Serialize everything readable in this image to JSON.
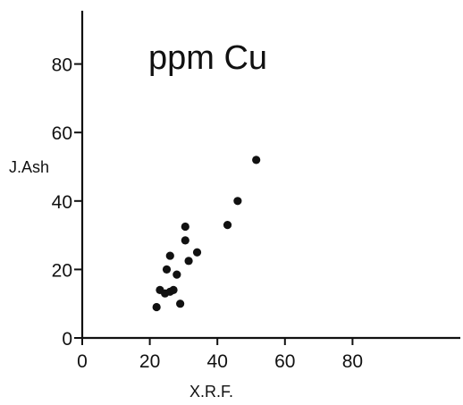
{
  "chart_data": {
    "type": "scatter",
    "title": "ppm Cu",
    "xlabel": "X.R.F.",
    "ylabel": "J.Ash",
    "xlim": [
      0,
      110
    ],
    "ylim": [
      0,
      95
    ],
    "xticks": [
      0,
      20,
      40,
      60,
      80
    ],
    "yticks": [
      0,
      20,
      40,
      60,
      80
    ],
    "grid": false,
    "legend": "none",
    "colors": {
      "points": "#111111",
      "axes": "#111111"
    },
    "series": [
      {
        "x": [
          22,
          23,
          24.5,
          25,
          26,
          26,
          27,
          28,
          29,
          30.5,
          30.5,
          31.5,
          34,
          43,
          46,
          51.5
        ],
        "y": [
          9,
          14,
          13,
          20,
          13.5,
          24,
          14,
          18.5,
          10,
          28.5,
          32.5,
          22.5,
          25,
          33,
          40,
          52
        ]
      }
    ]
  }
}
